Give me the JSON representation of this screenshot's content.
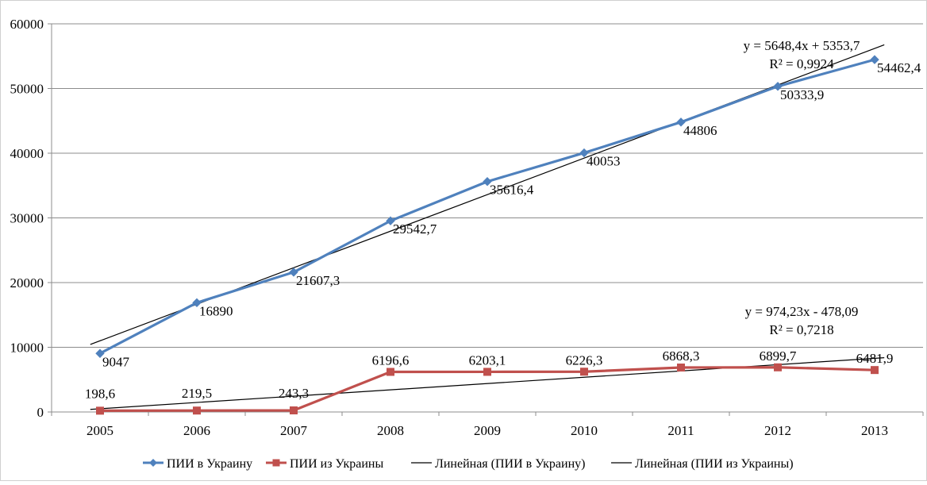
{
  "chart_data": {
    "type": "line",
    "categories": [
      "2005",
      "2006",
      "2007",
      "2008",
      "2009",
      "2010",
      "2011",
      "2012",
      "2013"
    ],
    "ylim": [
      0,
      60000
    ],
    "yticks": [
      0,
      10000,
      20000,
      30000,
      40000,
      50000,
      60000
    ],
    "ytick_labels": [
      "0",
      "10000",
      "20000",
      "30000",
      "40000",
      "50000",
      "60000"
    ],
    "grid": "horizontal",
    "legend_position": "bottom",
    "series": [
      {
        "name": "ПИИ в Украину",
        "color": "#4f81bd",
        "marker": "diamond",
        "values": [
          9047,
          16890,
          21607.3,
          29542.7,
          35616.4,
          40053,
          44806,
          50333.9,
          54462.4
        ],
        "labels": [
          "9047",
          "16890",
          "21607,3",
          "29542,7",
          "35616,4",
          "40053",
          "44806",
          "50333,9",
          "54462,4"
        ]
      },
      {
        "name": "ПИИ из Украины",
        "color": "#c0504d",
        "marker": "square",
        "values": [
          198.6,
          219.5,
          243.3,
          6196.6,
          6203.1,
          6226.3,
          6868.3,
          6899.7,
          6481.9
        ],
        "labels": [
          "198,6",
          "219,5",
          "243,3",
          "6196,6",
          "6203,1",
          "6226,3",
          "6868,3",
          "6899,7",
          "6481,9"
        ]
      }
    ],
    "trendlines": [
      {
        "name": "Линейная (ПИИ в Украину)",
        "color": "#000000",
        "slope": 5648.4,
        "intercept": 5353.7,
        "equation": "y = 5648,4x + 5353,7",
        "r2": "R² = 0,9924"
      },
      {
        "name": "Линейная (ПИИ из Украины)",
        "color": "#000000",
        "slope": 974.23,
        "intercept": -478.09,
        "equation": "y = 974,23x - 478,09",
        "r2": "R² = 0,7218"
      }
    ]
  }
}
